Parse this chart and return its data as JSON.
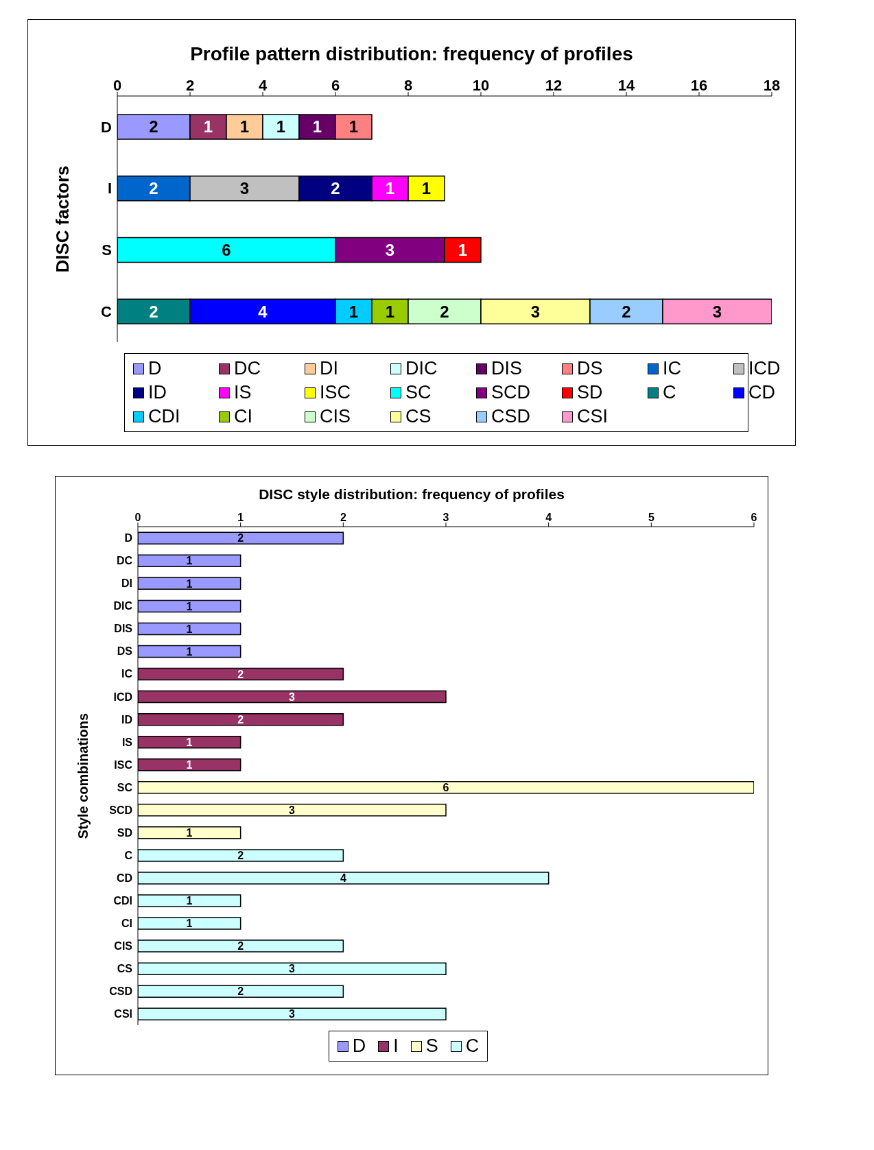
{
  "chart_data": [
    {
      "type": "bar",
      "orientation": "horizontal",
      "stacked": true,
      "title": "Profile pattern distribution: frequency of profiles",
      "ylabel": "DISC factors",
      "categories": [
        "D",
        "I",
        "S",
        "C"
      ],
      "xlim": [
        0,
        18
      ],
      "xticks": [
        0,
        2,
        4,
        6,
        8,
        10,
        12,
        14,
        16,
        18
      ],
      "data_labels": true,
      "legend": "bottom",
      "series": [
        {
          "name": "D",
          "color": "#9999ff",
          "values": [
            2,
            null,
            null,
            null
          ]
        },
        {
          "name": "DC",
          "color": "#993366",
          "values": [
            1,
            null,
            null,
            null
          ]
        },
        {
          "name": "DI",
          "color": "#ffcc99",
          "values": [
            1,
            null,
            null,
            null
          ]
        },
        {
          "name": "DIC",
          "color": "#ccffff",
          "values": [
            1,
            null,
            null,
            null
          ]
        },
        {
          "name": "DIS",
          "color": "#660066",
          "values": [
            1,
            null,
            null,
            null
          ]
        },
        {
          "name": "DS",
          "color": "#ff8080",
          "values": [
            1,
            null,
            null,
            null
          ]
        },
        {
          "name": "IC",
          "color": "#0066cc",
          "values": [
            null,
            2,
            null,
            null
          ]
        },
        {
          "name": "ICD",
          "color": "#c0c0c0",
          "values": [
            null,
            3,
            null,
            null
          ]
        },
        {
          "name": "ID",
          "color": "#000080",
          "values": [
            null,
            2,
            null,
            null
          ]
        },
        {
          "name": "IS",
          "color": "#ff00ff",
          "values": [
            null,
            1,
            null,
            null
          ]
        },
        {
          "name": "ISC",
          "color": "#ffff00",
          "values": [
            null,
            1,
            null,
            null
          ]
        },
        {
          "name": "SC",
          "color": "#00ffff",
          "values": [
            null,
            null,
            6,
            null
          ]
        },
        {
          "name": "SCD",
          "color": "#800080",
          "values": [
            null,
            null,
            3,
            null
          ]
        },
        {
          "name": "SD",
          "color": "#ff0000",
          "values": [
            null,
            null,
            1,
            null
          ]
        },
        {
          "name": "C",
          "color": "#008080",
          "values": [
            null,
            null,
            null,
            2
          ]
        },
        {
          "name": "CD",
          "color": "#0000ff",
          "values": [
            null,
            null,
            null,
            4
          ]
        },
        {
          "name": "CDI",
          "color": "#00ccff",
          "values": [
            null,
            null,
            null,
            1
          ]
        },
        {
          "name": "CI",
          "color": "#99cc00",
          "values": [
            null,
            null,
            null,
            1
          ]
        },
        {
          "name": "CIS",
          "color": "#ccffcc",
          "values": [
            null,
            null,
            null,
            2
          ]
        },
        {
          "name": "CS",
          "color": "#ffff99",
          "values": [
            null,
            null,
            null,
            3
          ]
        },
        {
          "name": "CSD",
          "color": "#99ccff",
          "values": [
            null,
            null,
            null,
            2
          ]
        },
        {
          "name": "CSI",
          "color": "#ff99cc",
          "values": [
            null,
            null,
            null,
            3
          ]
        }
      ]
    },
    {
      "type": "bar",
      "orientation": "horizontal",
      "stacked": true,
      "title": "DISC style distribution: frequency of profiles",
      "ylabel": "Style combinations",
      "categories": [
        "D",
        "DC",
        "DI",
        "DIC",
        "DIS",
        "DS",
        "IC",
        "ICD",
        "ID",
        "IS",
        "ISC",
        "SC",
        "SCD",
        "SD",
        "C",
        "CD",
        "CDI",
        "CI",
        "CIS",
        "CS",
        "CSD",
        "CSI"
      ],
      "xlim": [
        0,
        6
      ],
      "xticks": [
        0,
        1,
        2,
        3,
        4,
        5,
        6
      ],
      "data_labels": true,
      "legend": "bottom",
      "series": [
        {
          "name": "D",
          "color": "#9999ff",
          "values": [
            2,
            1,
            1,
            1,
            1,
            1,
            null,
            null,
            null,
            null,
            null,
            null,
            null,
            null,
            null,
            null,
            null,
            null,
            null,
            null,
            null,
            null
          ]
        },
        {
          "name": "I",
          "color": "#993366",
          "values": [
            null,
            null,
            null,
            null,
            null,
            null,
            2,
            3,
            2,
            1,
            1,
            null,
            null,
            null,
            null,
            null,
            null,
            null,
            null,
            null,
            null,
            null
          ]
        },
        {
          "name": "S",
          "color": "#ffffcc",
          "values": [
            null,
            null,
            null,
            null,
            null,
            null,
            null,
            null,
            null,
            null,
            null,
            6,
            3,
            1,
            null,
            null,
            null,
            null,
            null,
            null,
            null,
            null
          ]
        },
        {
          "name": "C",
          "color": "#ccffff",
          "values": [
            null,
            null,
            null,
            null,
            null,
            null,
            null,
            null,
            null,
            null,
            null,
            null,
            null,
            null,
            2,
            4,
            1,
            1,
            2,
            3,
            2,
            3
          ]
        }
      ]
    }
  ]
}
